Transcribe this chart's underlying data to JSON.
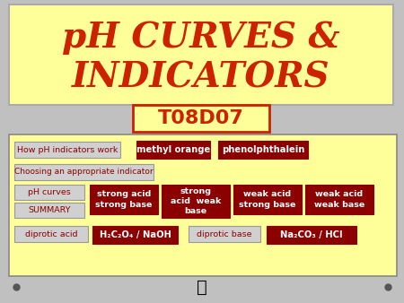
{
  "bg_color": "#c0c0c0",
  "title_text_line1": "pH CURVES &",
  "title_text_line2": "INDICATORS",
  "title_bg": "#ffff99",
  "title_color": "#cc2200",
  "title_border": "#aaaaaa",
  "code_text": "T08D07",
  "code_bg": "#ffff99",
  "code_color": "#cc2200",
  "code_border": "#cc2200",
  "content_bg": "#ffff99",
  "content_border": "#888888",
  "dark_red": "#8b0000",
  "light_gray": "#d0d0d0",
  "row1_label": "How pH indicators work",
  "row1_btn1": "methyl orange",
  "row1_btn2": "phenolphthalein",
  "row2_label": "Choosing an appropriate indicator",
  "row3_label1": "pH curves",
  "row3_label2": "SUMMARY",
  "row3_btns": [
    "strong acid\nstrong base",
    "strong\nacid  weak\nbase",
    "weak acid\nstrong base",
    "weak acid\nweak base"
  ],
  "row4_label": "diprotic acid",
  "row4_btn1": "H₂C₂O₄ / NaOH",
  "row4_label2": "diprotic base",
  "row4_btn2": "Na₂CO₃ / HCl"
}
